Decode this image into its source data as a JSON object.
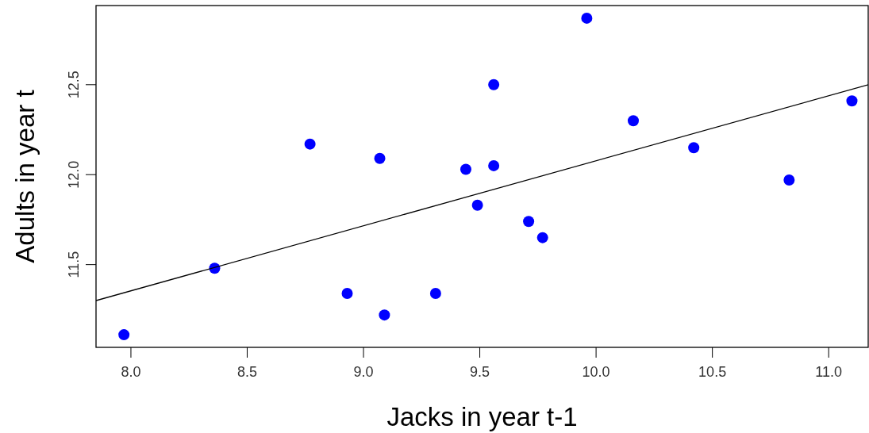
{
  "chart_data": {
    "type": "scatter",
    "xlabel": "Jacks in year t-1",
    "ylabel": "Adults in year t",
    "xlim": [
      7.85,
      11.17
    ],
    "ylim": [
      11.04,
      12.94
    ],
    "xticks": [
      {
        "value": 8,
        "label": "8.0"
      },
      {
        "value": 8.5,
        "label": "8.5"
      },
      {
        "value": 9,
        "label": "9.0"
      },
      {
        "value": 9.5,
        "label": "9.5"
      },
      {
        "value": 10,
        "label": "10.0"
      },
      {
        "value": 10.5,
        "label": "10.5"
      },
      {
        "value": 11,
        "label": "11.0"
      }
    ],
    "yticks": [
      {
        "value": 11.5,
        "label": "11.5"
      },
      {
        "value": 12,
        "label": "12.0"
      },
      {
        "value": 12.5,
        "label": "12.5"
      }
    ],
    "grid": false,
    "series": [
      {
        "marker": "circle",
        "color": "#0000ff",
        "x": [
          7.97,
          8.36,
          8.77,
          8.93,
          9.07,
          9.09,
          9.31,
          9.44,
          9.49,
          9.56,
          9.56,
          9.71,
          9.77,
          9.96,
          10.16,
          10.42,
          10.83,
          11.1
        ],
        "values": [
          11.11,
          11.48,
          12.17,
          11.34,
          12.09,
          11.22,
          11.34,
          12.03,
          11.83,
          12.5,
          12.05,
          11.74,
          11.65,
          12.87,
          12.3,
          12.15,
          11.97,
          12.41
        ]
      },
      {
        "type": "line",
        "color": "#000000",
        "x": [
          7.85,
          11.17
        ],
        "values": [
          11.3,
          12.5
        ]
      }
    ]
  }
}
